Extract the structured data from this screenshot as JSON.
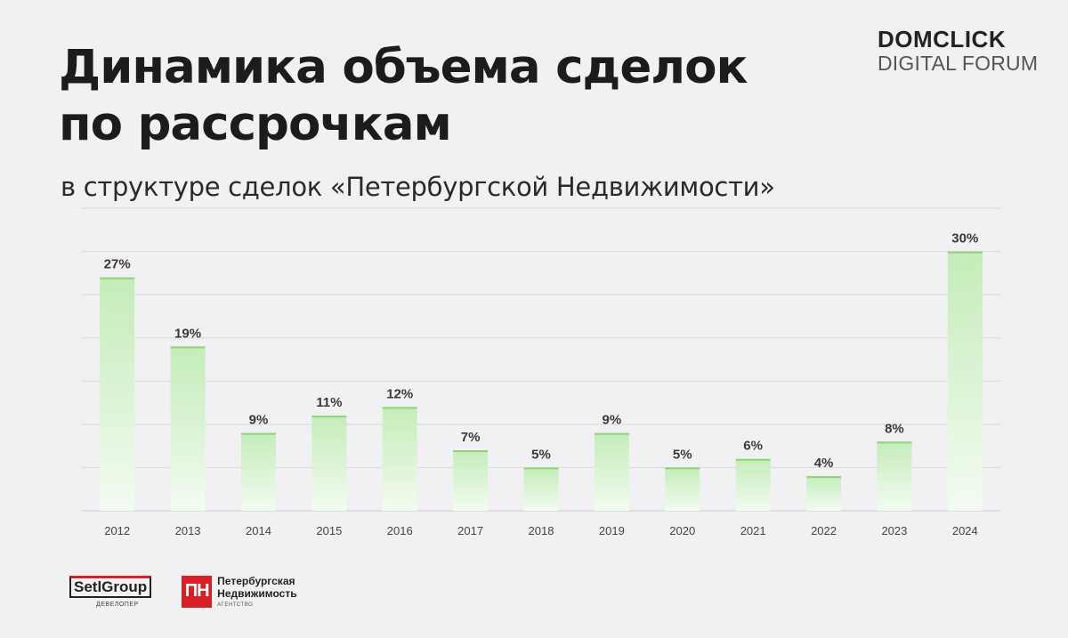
{
  "header": {
    "title_line1": "Динамика объема сделок",
    "title_line2": "по рассрочкам",
    "subtitle": "в структуре сделок «Петербургской Недвижимости»"
  },
  "brand": {
    "main": "DOMCLICK",
    "sub": "DIGITAL FORUM"
  },
  "footer": {
    "setl_name": "SetlGroup",
    "setl_tag": "ДЕВЕЛОПЕР",
    "pn_mark": "ПН",
    "pn_line1": "Петербургская",
    "pn_line2": "Недвижимость",
    "pn_tag": "АГЕНТСТВО"
  },
  "colors": {
    "bar_top": "#c4ecb9",
    "bar_bottom": "#f3fbf1",
    "bar_edge": "#8fd27c",
    "grid": "#d9d9de",
    "label": "#3a3a3a",
    "tick": "#444444"
  },
  "chart_data": {
    "type": "bar",
    "categories": [
      "2012",
      "2013",
      "2014",
      "2015",
      "2016",
      "2017",
      "2018",
      "2019",
      "2020",
      "2021",
      "2022",
      "2023",
      "2024"
    ],
    "values": [
      27,
      19,
      9,
      11,
      12,
      7,
      5,
      9,
      5,
      6,
      4,
      8,
      30
    ],
    "value_labels": [
      "27%",
      "19%",
      "9%",
      "11%",
      "12%",
      "7%",
      "5%",
      "9%",
      "5%",
      "6%",
      "4%",
      "8%",
      "30%"
    ],
    "title": "Динамика объема сделок по рассрочкам",
    "xlabel": "",
    "ylabel": "",
    "ylim": [
      0,
      35
    ],
    "grid": true,
    "unit": "%"
  }
}
